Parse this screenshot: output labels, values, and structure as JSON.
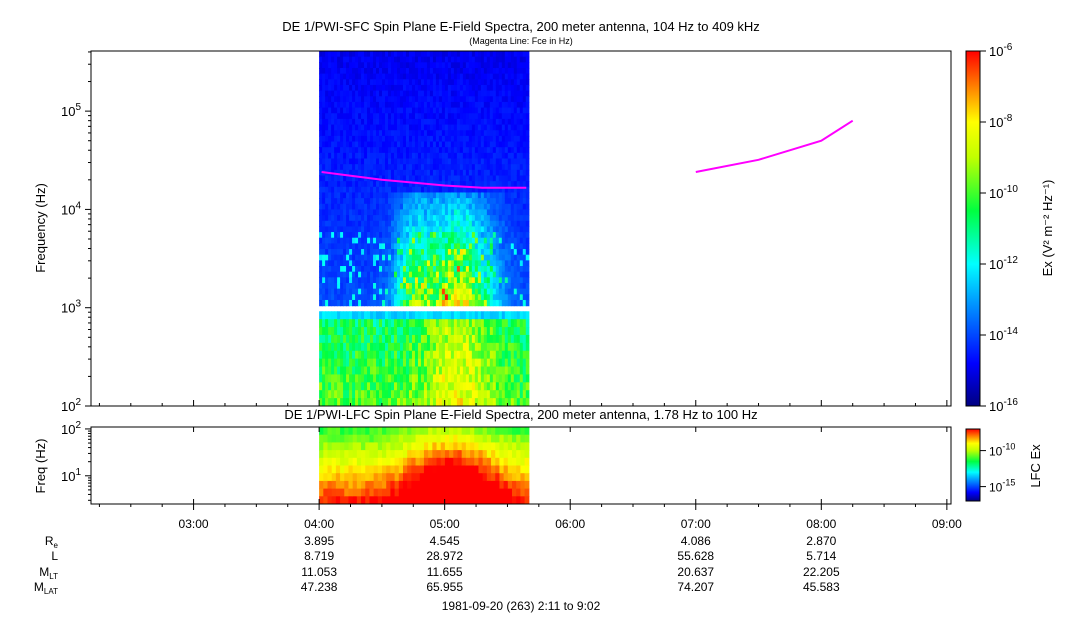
{
  "chart_data": [
    {
      "type": "heatmap",
      "title": "DE 1/PWI-SFC  Spin Plane E-Field Spectra, 200 meter antenna, 104 Hz to 409 kHz",
      "subtitle": "(Magenta Line: Fce in Hz)",
      "ylabel": "Frequency (Hz)",
      "y_scale": "log",
      "ylim": [
        100,
        409000
      ],
      "y_ticks": [
        {
          "base": "10",
          "exp": "2",
          "value": 100
        },
        {
          "base": "10",
          "exp": "3",
          "value": 1000
        },
        {
          "base": "10",
          "exp": "4",
          "value": 10000
        },
        {
          "base": "10",
          "exp": "5",
          "value": 100000
        }
      ],
      "data_extent_hours": [
        4.0,
        5.67
      ],
      "band_gap_hz": [
        920,
        1050
      ],
      "fce_line": {
        "name": "Fce",
        "color": "#ff00ff",
        "segments": [
          [
            [
              4.02,
              24000
            ],
            [
              4.5,
              20000
            ],
            [
              5.0,
              17500
            ],
            [
              5.3,
              16600
            ],
            [
              5.65,
              16600
            ]
          ],
          [
            [
              7.0,
              24000
            ],
            [
              7.5,
              32000
            ],
            [
              8.0,
              50000
            ],
            [
              8.25,
              80000
            ]
          ]
        ]
      },
      "colorbar": {
        "label": "Ex (V² m⁻² Hz⁻¹)",
        "log_range": [
          -16,
          -6
        ],
        "ticks": [
          {
            "base": "10",
            "exp": "-6",
            "value": -6
          },
          {
            "base": "10",
            "exp": "-8",
            "value": -8
          },
          {
            "base": "10",
            "exp": "-10",
            "value": -10
          },
          {
            "base": "10",
            "exp": "-12",
            "value": -12
          },
          {
            "base": "10",
            "exp": "-14",
            "value": -14
          },
          {
            "base": "10",
            "exp": "-16",
            "value": -16
          }
        ]
      }
    },
    {
      "type": "heatmap",
      "title": "DE 1/PWI-LFC  Spin Plane E-Field Spectra, 200 meter antenna, 1.78 Hz to 100 Hz",
      "ylabel": "Freq (Hz)",
      "y_scale": "log",
      "ylim": [
        2.5,
        110
      ],
      "y_ticks": [
        {
          "base": "10",
          "exp": "1",
          "value": 10
        },
        {
          "base": "10",
          "exp": "2",
          "value": 100
        }
      ],
      "data_extent_hours": [
        4.0,
        5.67
      ],
      "colorbar": {
        "label": "LFC Ex",
        "log_range": [
          -17,
          -7
        ],
        "ticks": [
          {
            "base": "10",
            "exp": "-10",
            "value": -10
          },
          {
            "base": "10",
            "exp": "-15",
            "value": -15
          }
        ]
      }
    }
  ],
  "time_axis": {
    "range_hours": [
      2.183,
      9.033
    ],
    "tick_labels": [
      "03:00",
      "04:00",
      "05:00",
      "06:00",
      "07:00",
      "08:00",
      "09:00"
    ],
    "tick_hours": [
      3,
      4,
      5,
      6,
      7,
      8,
      9
    ]
  },
  "ephemeris": {
    "rows": [
      {
        "name": "R",
        "sub": "e",
        "values": [
          "",
          "3.895",
          "4.545",
          "",
          "4.086",
          "2.870",
          ""
        ]
      },
      {
        "name": "L",
        "sub": "",
        "values": [
          "",
          "8.719",
          "28.972",
          "",
          "55.628",
          "5.714",
          ""
        ]
      },
      {
        "name": "M",
        "sub": "LT",
        "values": [
          "",
          "11.053",
          "11.655",
          "",
          "20.637",
          "22.205",
          ""
        ]
      },
      {
        "name": "M",
        "sub": "LAT",
        "values": [
          "",
          "47.238",
          "65.955",
          "",
          "74.207",
          "45.583",
          ""
        ]
      }
    ]
  },
  "footer": "1981-09-20 (263) 2:11 to 9:02"
}
